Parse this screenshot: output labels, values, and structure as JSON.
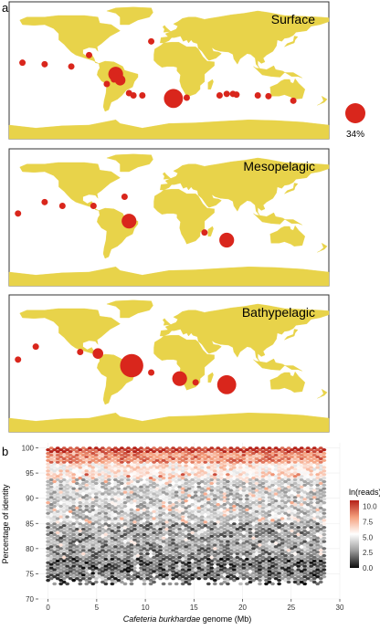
{
  "figure": {
    "panel_a_label": "a",
    "panel_b_label": "b"
  },
  "colors": {
    "land": "#e8d34a",
    "ocean": "#ffffff",
    "bubble": "#d9261c",
    "frame": "#333333"
  },
  "maps": [
    {
      "title": "Surface",
      "samples": [
        {
          "lon": -60,
          "lat": -5,
          "size": 3
        },
        {
          "lon": -55,
          "lat": -13,
          "size": 2
        },
        {
          "lon": -62,
          "lat": -12,
          "size": 1
        },
        {
          "lon": -60,
          "lat": 0,
          "size": 1
        },
        {
          "lon": -70,
          "lat": -18,
          "size": 1
        },
        {
          "lon": -45,
          "lat": -30,
          "size": 1
        },
        {
          "lon": -40,
          "lat": -33,
          "size": 1
        },
        {
          "lon": -30,
          "lat": -33,
          "size": 1
        },
        {
          "lon": 5,
          "lat": -37,
          "size": 4
        },
        {
          "lon": 20,
          "lat": -36,
          "size": 1
        },
        {
          "lon": 57,
          "lat": -33,
          "size": 1
        },
        {
          "lon": 65,
          "lat": -31,
          "size": 1
        },
        {
          "lon": 72,
          "lat": -31,
          "size": 1
        },
        {
          "lon": 76,
          "lat": -32,
          "size": 1
        },
        {
          "lon": 100,
          "lat": -33,
          "size": 1
        },
        {
          "lon": 112,
          "lat": -34,
          "size": 1
        },
        {
          "lon": 140,
          "lat": -40,
          "size": 1
        },
        {
          "lon": -165,
          "lat": 10,
          "size": 1
        },
        {
          "lon": -140,
          "lat": 8,
          "size": 1
        },
        {
          "lon": -110,
          "lat": 5,
          "size": 1
        },
        {
          "lon": -90,
          "lat": 20,
          "size": 1
        },
        {
          "lon": -20,
          "lat": 38,
          "size": 1
        }
      ]
    },
    {
      "title": "Mesopelagic",
      "samples": [
        {
          "lon": -140,
          "lat": 20,
          "size": 1
        },
        {
          "lon": -120,
          "lat": 15,
          "size": 1
        },
        {
          "lon": -85,
          "lat": 15,
          "size": 1
        },
        {
          "lon": -50,
          "lat": 27,
          "size": 1
        },
        {
          "lon": -45,
          "lat": -5,
          "size": 3
        },
        {
          "lon": 40,
          "lat": -20,
          "size": 1
        },
        {
          "lon": 65,
          "lat": -30,
          "size": 3
        },
        {
          "lon": -170,
          "lat": 5,
          "size": 1
        }
      ]
    },
    {
      "title": "Bathypelagic",
      "samples": [
        {
          "lon": -150,
          "lat": 22,
          "size": 1
        },
        {
          "lon": -170,
          "lat": 5,
          "size": 1
        },
        {
          "lon": -100,
          "lat": 15,
          "size": 1
        },
        {
          "lon": -80,
          "lat": 13,
          "size": 2
        },
        {
          "lon": -42,
          "lat": -3,
          "size": 5
        },
        {
          "lon": 12,
          "lat": -20,
          "size": 3
        },
        {
          "lon": 30,
          "lat": -25,
          "size": 1
        },
        {
          "lon": 65,
          "lat": -28,
          "size": 4
        },
        {
          "lon": -20,
          "lat": -12,
          "size": 1
        }
      ]
    }
  ],
  "legend_bubble": {
    "label": "34%",
    "size": 4
  },
  "chart_data": {
    "type": "heatmap",
    "xlabel_italic": "Cafeteria burkhardae",
    "xlabel_rest": " genome (Mb)",
    "ylabel": "Percentage of identity",
    "xlim": [
      -1,
      30
    ],
    "ylim": [
      70,
      101
    ],
    "xticks": [
      0,
      5,
      10,
      15,
      20,
      25,
      30
    ],
    "yticks": [
      70,
      75,
      80,
      85,
      90,
      95,
      100
    ],
    "colorbar": {
      "title": "ln(reads)",
      "range": [
        0,
        11
      ],
      "ticks": [
        0.0,
        2.5,
        5.0,
        7.5,
        10.0
      ],
      "colors": [
        "#0a0a0a",
        "#9a9a9a",
        "#ffffff",
        "#f5a07e",
        "#b52118"
      ]
    }
  }
}
